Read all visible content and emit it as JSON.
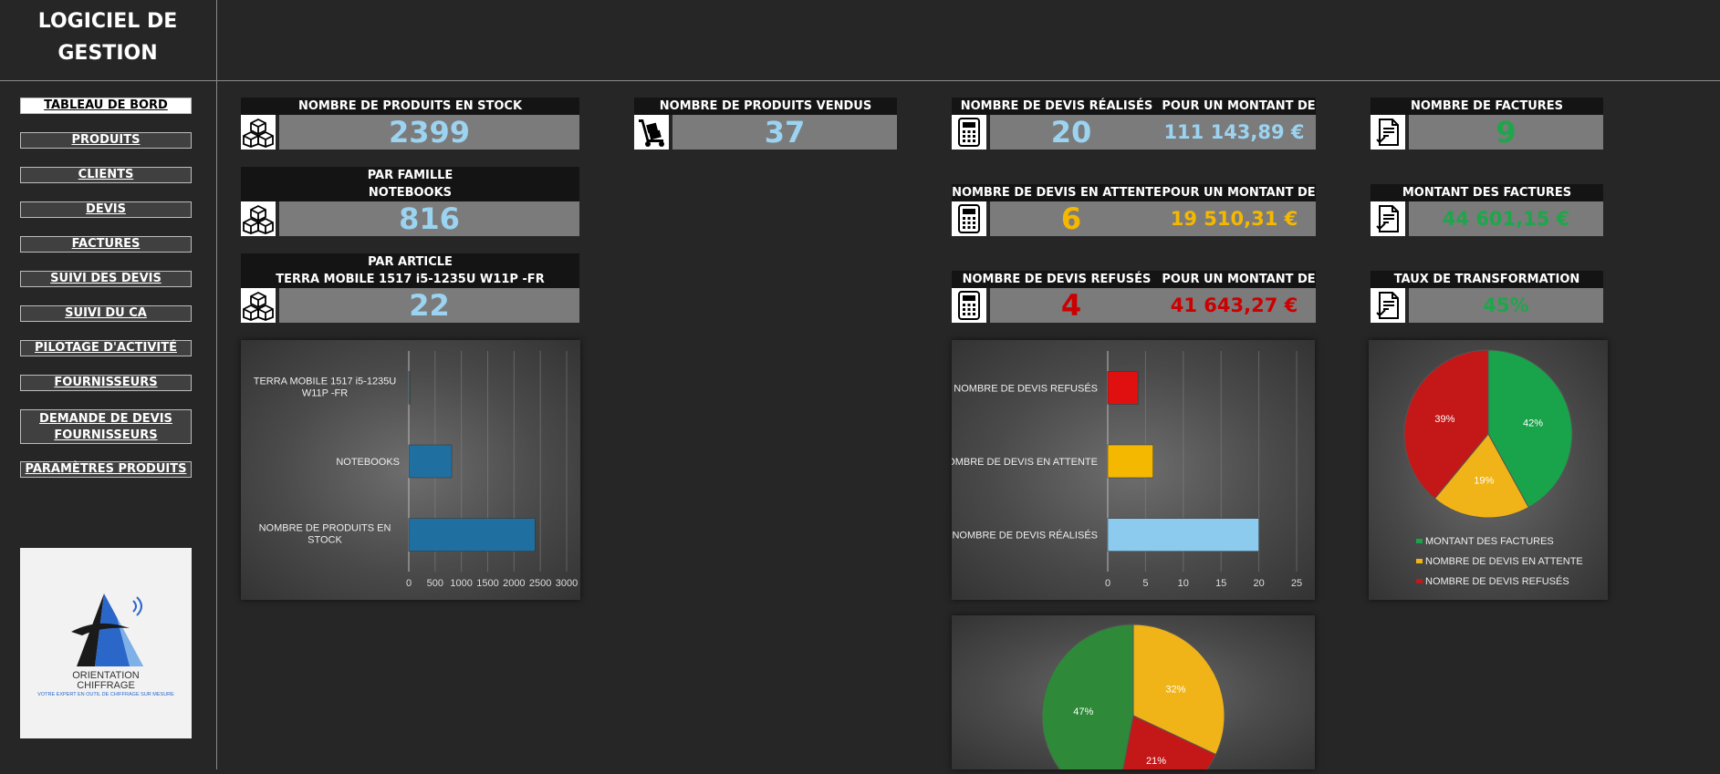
{
  "app": {
    "title_line1": "LOGICIEL DE",
    "title_line2": "GESTION"
  },
  "nav": [
    {
      "label": "TABLEAU DE BORD",
      "active": true
    },
    {
      "label": "PRODUITS"
    },
    {
      "label": "CLIENTS"
    },
    {
      "label": "DEVIS"
    },
    {
      "label": "FACTURES"
    },
    {
      "label": "SUIVI DES DEVIS"
    },
    {
      "label": "SUIVI DU CA"
    },
    {
      "label": "PILOTAGE D'ACTIVITÉ"
    },
    {
      "label": "FOURNISSEURS"
    },
    {
      "label": "DEMANDE DE DEVIS",
      "label2": "FOURNISSEURS"
    },
    {
      "label": "PARAMÈTRES PRODUITS"
    }
  ],
  "logo": {
    "line1": "ORIENTATION",
    "line2": "CHIFFRAGE",
    "tagline": "VOTRE EXPERT EN OUTIL DE CHIFFRAGE SUR MESURE"
  },
  "cards": {
    "stock": {
      "label": "NOMBRE DE PRODUITS EN STOCK",
      "value": "2399"
    },
    "famille": {
      "label1": "PAR FAMILLE",
      "label2": "NOTEBOOKS",
      "value": "816"
    },
    "article": {
      "label1": "PAR ARTICLE",
      "label2": "TERRA MOBILE 1517 i5-1235U W11P -FR",
      "value": "22"
    },
    "vendus": {
      "label": "NOMBRE DE PRODUITS VENDUS",
      "value": "37"
    },
    "devis_realises": {
      "label": "NOMBRE DE DEVIS RÉALISÉS",
      "value": "20",
      "amount_label": "POUR UN MONTANT DE",
      "amount": "111 143,89 €"
    },
    "devis_attente": {
      "label": "NOMBRE DE DEVIS EN ATTENTE",
      "value": "6",
      "amount_label": "POUR UN MONTANT DE",
      "amount": "19 510,31 €"
    },
    "devis_refuses": {
      "label": "NOMBRE DE DEVIS REFUSÉS",
      "value": "4",
      "amount_label": "POUR UN MONTANT DE",
      "amount": "41 643,27 €"
    },
    "nb_factures": {
      "label": "NOMBRE DE FACTURES",
      "value": "9"
    },
    "montant_factures": {
      "label": "MONTANT DES FACTURES",
      "value": "44 601,15 €"
    },
    "taux": {
      "label": "TAUX DE TRANSFORMATION",
      "value": "45%"
    }
  },
  "colors": {
    "blue": "#9bd3f0",
    "orange": "#f5b800",
    "red": "#cc0000",
    "green": "#1ea64a"
  },
  "icons": {
    "stock": "cubes-icon",
    "vendus": "hand-truck-icon",
    "devis": "calculator-icon",
    "factures": "invoice-icon"
  },
  "chart_data": [
    {
      "type": "bar",
      "orientation": "horizontal",
      "categories": [
        "TERRA MOBILE 1517 i5-1235U W11P -FR",
        "NOTEBOOKS",
        "NOMBRE DE PRODUITS EN STOCK"
      ],
      "values": [
        22,
        816,
        2399
      ],
      "xlim": [
        0,
        3000
      ],
      "xticks": [
        "0",
        "500",
        "1000",
        "1500",
        "2000",
        "2500",
        "3000"
      ],
      "color": "#1f6fa0",
      "grid": true
    },
    {
      "type": "bar",
      "orientation": "horizontal",
      "categories": [
        "NOMBRE DE DEVIS REFUSÉS",
        "NOMBRE DE DEVIS EN ATTENTE",
        "NOMBRE DE DEVIS RÉALISÉS"
      ],
      "values": [
        4,
        6,
        20
      ],
      "colors": [
        "#e01010",
        "#f5b800",
        "#8ccbee"
      ],
      "xlim": [
        0,
        25
      ],
      "xticks": [
        "0",
        "5",
        "10",
        "15",
        "20",
        "25"
      ],
      "grid": true
    },
    {
      "type": "pie",
      "labels": [
        "MONTANT DES FACTURES",
        "NOMBRE DE DEVIS EN ATTENTE",
        "NOMBRE DE DEVIS REFUSÉS"
      ],
      "values": [
        42,
        19,
        39
      ],
      "pct_labels": [
        "42%",
        "19%",
        "39%"
      ],
      "colors": [
        "#19a34a",
        "#f0b418",
        "#c41818"
      ],
      "legend": "bottom"
    },
    {
      "type": "pie",
      "labels": [
        "",
        "",
        ""
      ],
      "values": [
        32,
        21,
        47
      ],
      "pct_labels": [
        "32%",
        "21%",
        "47%"
      ],
      "colors": [
        "#f0b418",
        "#c41818",
        "#2e8a38"
      ]
    }
  ]
}
